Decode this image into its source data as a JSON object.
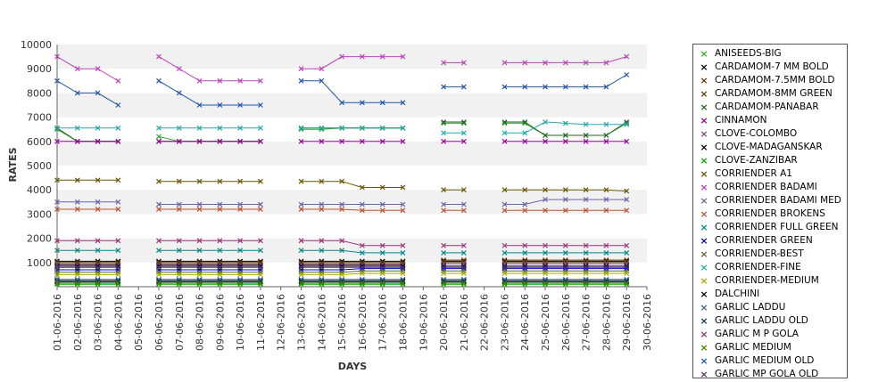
{
  "chart_data": {
    "type": "line",
    "title": "",
    "xlabel": "DAYS",
    "ylabel": "RATES",
    "ylim": [
      0,
      10000
    ],
    "yticks": [
      1000,
      2000,
      3000,
      4000,
      5000,
      6000,
      7000,
      8000,
      9000,
      10000
    ],
    "grid": "alternating horizontal bands",
    "legend_position": "right",
    "categories": [
      "01-06-2016",
      "02-06-2016",
      "03-06-2016",
      "04-06-2016",
      "05-06-2016",
      "06-06-2016",
      "07-06-2016",
      "08-06-2016",
      "09-06-2016",
      "10-06-2016",
      "11-06-2016",
      "12-06-2016",
      "13-06-2016",
      "14-06-2016",
      "15-06-2016",
      "16-06-2016",
      "17-06-2016",
      "18-06-2016",
      "19-06-2016",
      "20-06-2016",
      "21-06-2016",
      "22-06-2016",
      "23-06-2016",
      "24-06-2016",
      "25-06-2016",
      "26-06-2016",
      "27-06-2016",
      "28-06-2016",
      "29-06-2016",
      "30-06-2016"
    ],
    "series": [
      {
        "name": "ANISEEDS-BIG",
        "color": "#33aa33",
        "values": [
          6500,
          6000,
          6000,
          6000,
          null,
          6200,
          6000,
          6000,
          6000,
          6000,
          6000,
          null,
          6500,
          6500,
          6550,
          6550,
          6550,
          6550,
          null,
          6750,
          6750,
          null,
          6750,
          6750,
          6250,
          6250,
          6250,
          6250,
          6750,
          null
        ]
      },
      {
        "name": "CARDAMOM-7 MM BOLD",
        "color": "#000000",
        "values": [
          1050,
          1050,
          1050,
          1050,
          null,
          1050,
          1050,
          1050,
          1050,
          1050,
          1050,
          null,
          1050,
          1050,
          1050,
          1050,
          1050,
          1050,
          null,
          1050,
          1050,
          null,
          1050,
          1050,
          1050,
          1050,
          1050,
          1050,
          1050,
          null
        ]
      },
      {
        "name": "CARDAMOM-7.5MM BOLD",
        "color": "#663300",
        "values": [
          1000,
          1000,
          1000,
          1000,
          null,
          1000,
          1000,
          1000,
          1000,
          1000,
          1000,
          null,
          1000,
          1000,
          1000,
          1000,
          1000,
          1000,
          null,
          1100,
          1100,
          null,
          1100,
          1100,
          1100,
          1100,
          1100,
          1100,
          1100,
          null
        ]
      },
      {
        "name": "CARDAMOM-8MM GREEN",
        "color": "#554400",
        "values": [
          950,
          950,
          950,
          950,
          null,
          950,
          950,
          950,
          950,
          950,
          950,
          null,
          950,
          950,
          950,
          950,
          950,
          950,
          null,
          1000,
          1000,
          null,
          1000,
          1000,
          1000,
          1000,
          1000,
          1000,
          1000,
          null
        ]
      },
      {
        "name": "CARDAMOM-PANABAR",
        "color": "#226622",
        "values": [
          6550,
          6000,
          6000,
          6000,
          null,
          6000,
          6000,
          6000,
          6000,
          6000,
          6000,
          null,
          6550,
          6550,
          6550,
          6550,
          6550,
          6550,
          null,
          6800,
          6800,
          null,
          6800,
          6800,
          6250,
          6250,
          6250,
          6250,
          6800,
          null
        ]
      },
      {
        "name": "CINNAMON",
        "color": "#990099",
        "values": [
          6000,
          6000,
          6000,
          6000,
          null,
          6000,
          6000,
          6000,
          6000,
          6000,
          6000,
          null,
          6000,
          6000,
          6000,
          6000,
          6000,
          6000,
          null,
          6000,
          6000,
          null,
          6000,
          6000,
          6000,
          6000,
          6000,
          6000,
          6000,
          null
        ]
      },
      {
        "name": "CLOVE-COLOMBO",
        "color": "#884488",
        "values": [
          900,
          900,
          900,
          900,
          null,
          900,
          900,
          900,
          900,
          900,
          900,
          null,
          900,
          900,
          900,
          900,
          900,
          900,
          null,
          950,
          950,
          null,
          950,
          950,
          950,
          950,
          950,
          950,
          950,
          null
        ]
      },
      {
        "name": "CLOVE-MADAGANSKAR",
        "color": "#000000",
        "values": [
          850,
          850,
          850,
          850,
          null,
          850,
          850,
          850,
          850,
          850,
          850,
          null,
          850,
          850,
          850,
          850,
          850,
          850,
          null,
          850,
          850,
          null,
          850,
          850,
          850,
          850,
          850,
          850,
          850,
          null
        ]
      },
      {
        "name": "CLOVE-ZANZIBAR",
        "color": "#00aa00",
        "values": [
          100,
          100,
          100,
          100,
          null,
          100,
          100,
          100,
          100,
          100,
          100,
          null,
          100,
          100,
          100,
          100,
          100,
          100,
          null,
          100,
          100,
          null,
          100,
          100,
          100,
          100,
          100,
          100,
          100,
          null
        ]
      },
      {
        "name": "CORRIENDER A1",
        "color": "#665500",
        "values": [
          4400,
          4400,
          4400,
          4400,
          null,
          4350,
          4350,
          4350,
          4350,
          4350,
          4350,
          null,
          4350,
          4350,
          4350,
          4100,
          4100,
          4100,
          null,
          4000,
          4000,
          null,
          4000,
          4000,
          4000,
          4000,
          4000,
          4000,
          3950,
          null
        ]
      },
      {
        "name": "CORRIENDER BADAMI",
        "color": "#bb44bb",
        "values": [
          9500,
          9000,
          9000,
          8500,
          null,
          9500,
          9000,
          8500,
          8500,
          8500,
          8500,
          null,
          9000,
          9000,
          9500,
          9500,
          9500,
          9500,
          null,
          9250,
          9250,
          null,
          9250,
          9250,
          9250,
          9250,
          9250,
          9250,
          9500,
          null
        ]
      },
      {
        "name": "CORRIENDER BADAMI MED",
        "color": "#6666aa",
        "values": [
          3500,
          3500,
          3500,
          3500,
          null,
          3400,
          3400,
          3400,
          3400,
          3400,
          3400,
          null,
          3400,
          3400,
          3400,
          3400,
          3400,
          3400,
          null,
          3400,
          3400,
          null,
          3400,
          3400,
          3600,
          3600,
          3600,
          3600,
          3600,
          null
        ]
      },
      {
        "name": "CORRIENDER BROKENS",
        "color": "#bb5533",
        "values": [
          3200,
          3200,
          3200,
          3200,
          null,
          3200,
          3200,
          3200,
          3200,
          3200,
          3200,
          null,
          3200,
          3200,
          3200,
          3150,
          3150,
          3150,
          null,
          3150,
          3150,
          null,
          3150,
          3150,
          3150,
          3150,
          3150,
          3150,
          3150,
          null
        ]
      },
      {
        "name": "CORRIENDER FULL GREEN",
        "color": "#008888",
        "values": [
          1500,
          1500,
          1500,
          1500,
          null,
          1500,
          1500,
          1500,
          1500,
          1500,
          1500,
          null,
          1500,
          1500,
          1500,
          1400,
          1400,
          1400,
          null,
          1400,
          1400,
          null,
          1400,
          1400,
          1400,
          1400,
          1400,
          1400,
          1400,
          null
        ]
      },
      {
        "name": "CORRIENDER GREEN",
        "color": "#0000cc",
        "values": [
          700,
          700,
          700,
          700,
          null,
          700,
          700,
          700,
          700,
          700,
          700,
          null,
          700,
          700,
          700,
          750,
          750,
          750,
          null,
          750,
          750,
          null,
          750,
          750,
          750,
          750,
          750,
          750,
          750,
          null
        ]
      },
      {
        "name": "CORRIENDER-BEST",
        "color": "#556b2f",
        "values": [
          600,
          600,
          600,
          600,
          null,
          600,
          600,
          600,
          600,
          600,
          600,
          null,
          600,
          600,
          600,
          650,
          650,
          650,
          null,
          650,
          650,
          null,
          650,
          650,
          650,
          650,
          650,
          650,
          650,
          null
        ]
      },
      {
        "name": "CORRIENDER-FINE",
        "color": "#22aaaa",
        "values": [
          6550,
          6550,
          6550,
          6550,
          null,
          6550,
          6550,
          6550,
          6550,
          6550,
          6550,
          null,
          6550,
          6550,
          6550,
          6550,
          6550,
          6550,
          null,
          6350,
          6350,
          null,
          6350,
          6350,
          6800,
          6750,
          6700,
          6700,
          6700,
          null
        ]
      },
      {
        "name": "CORRIENDER-MEDIUM",
        "color": "#aaaa00",
        "values": [
          500,
          500,
          500,
          500,
          null,
          500,
          500,
          500,
          500,
          500,
          500,
          null,
          500,
          500,
          500,
          550,
          550,
          550,
          null,
          550,
          550,
          null,
          550,
          550,
          550,
          550,
          550,
          550,
          550,
          null
        ]
      },
      {
        "name": "DALCHINI",
        "color": "#000000",
        "values": [
          250,
          250,
          250,
          250,
          null,
          250,
          250,
          250,
          250,
          250,
          250,
          null,
          250,
          250,
          250,
          250,
          250,
          250,
          null,
          250,
          250,
          null,
          250,
          250,
          250,
          250,
          250,
          250,
          250,
          null
        ]
      },
      {
        "name": "GARLIC LADDU",
        "color": "#336699",
        "values": [
          300,
          300,
          300,
          300,
          null,
          300,
          300,
          300,
          300,
          300,
          300,
          null,
          300,
          300,
          300,
          300,
          300,
          300,
          null,
          300,
          300,
          null,
          300,
          300,
          300,
          300,
          300,
          300,
          300,
          null
        ]
      },
      {
        "name": "GARLIC LADDU OLD",
        "color": "#113355",
        "values": [
          200,
          200,
          200,
          200,
          null,
          200,
          200,
          200,
          200,
          200,
          200,
          null,
          200,
          200,
          200,
          200,
          200,
          200,
          null,
          200,
          200,
          null,
          200,
          200,
          200,
          200,
          200,
          200,
          200,
          null
        ]
      },
      {
        "name": "GARLIC M P GOLA",
        "color": "#993377",
        "values": [
          1900,
          1900,
          1900,
          1900,
          null,
          1900,
          1900,
          1900,
          1900,
          1900,
          1900,
          null,
          1900,
          1900,
          1900,
          1700,
          1700,
          1700,
          null,
          1700,
          1700,
          null,
          1700,
          1700,
          1700,
          1700,
          1700,
          1700,
          1700,
          null
        ]
      },
      {
        "name": "GARLIC MEDIUM",
        "color": "#448800",
        "values": [
          150,
          150,
          150,
          150,
          null,
          150,
          150,
          150,
          150,
          150,
          150,
          null,
          150,
          150,
          150,
          150,
          150,
          150,
          null,
          150,
          150,
          null,
          150,
          150,
          150,
          150,
          150,
          150,
          150,
          null
        ]
      },
      {
        "name": "GARLIC MEDIUM OLD",
        "color": "#2255aa",
        "values": [
          8500,
          8000,
          8000,
          7500,
          null,
          8500,
          8000,
          7500,
          7500,
          7500,
          7500,
          null,
          8500,
          8500,
          7600,
          7600,
          7600,
          7600,
          null,
          8250,
          8250,
          null,
          8250,
          8250,
          8250,
          8250,
          8250,
          8250,
          8750,
          null
        ]
      },
      {
        "name": "GARLIC MP GOLA OLD",
        "color": "#553366",
        "values": [
          800,
          800,
          800,
          800,
          null,
          800,
          800,
          800,
          800,
          800,
          800,
          null,
          800,
          800,
          800,
          800,
          800,
          800,
          null,
          800,
          800,
          null,
          800,
          800,
          800,
          800,
          800,
          800,
          800,
          null
        ]
      }
    ]
  }
}
